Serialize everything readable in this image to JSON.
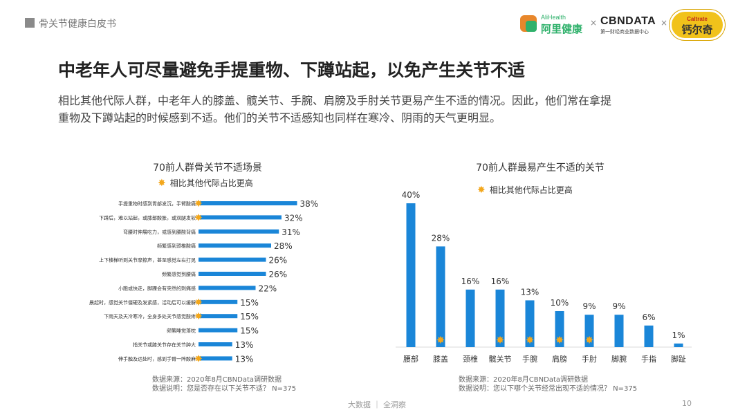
{
  "header": {
    "report_title": "骨关节健康白皮书"
  },
  "logos": {
    "alihealth_en": "AliHealth",
    "alihealth_cn": "阿里健康",
    "times": "×",
    "cbndata": "CBNDATA",
    "cbndata_sub": "第一财经商业数据中心",
    "caltrate_en": "Caltrate",
    "caltrate_cn": "钙尔奇"
  },
  "title": "中老年人可尽量避免手提重物、下蹲站起，以免产生关节不适",
  "intro_line1": "相比其他代际人群，中老年人的膝盖、髋关节、手腕、肩膀及手肘关节更易产生不适的情况。因此，他们常在拿提",
  "intro_line2": "重物及下蹲站起的时候感到不适。他们的关节不适感知也同样在寒冷、阴雨的天气更明显。",
  "left_chart": {
    "legend": "相比其他代际占比更高",
    "source": "数据来源：2020年8月CBNData调研数据",
    "note": "数据说明：您是否存在以下关节不适？ N=375"
  },
  "right_chart": {
    "legend": "相比其他代际占比更高",
    "source": "数据来源：2020年8月CBNData调研数据",
    "note": "数据说明：您以下哪个关节经常出现不适的情况？ N=375"
  },
  "footer": {
    "text": "大数据 ｜ 全洞察",
    "page": "10"
  },
  "chart_data": [
    {
      "type": "bar",
      "orientation": "horizontal",
      "title": "70前人群骨关节不适场景",
      "categories": [
        "手提重物时感到胃部发沉，手臂酸痛",
        "下蹲后，难以站起，或膝部酸胀，或双腿发软",
        "弯腰时伸展吃力，或感到腰酸背痛",
        "频繁感到颈椎酸痛",
        "上下楼梯听到关节摩擦声，甚至感觉左右打晃",
        "频繁感觉到腰痛",
        "小跑或快走，脚踝会有突然的刺痛感",
        "晨起时，感觉关节僵硬及发紧感，活动后可以缓解",
        "下雨天及天冷寒冷，全身多处关节感觉酸疼",
        "频繁睡觉落枕",
        "指关节或膝关节存在关节肿大",
        "伸手触及远处时，感到手臂一阵酸麻"
      ],
      "values": [
        38,
        32,
        31,
        28,
        26,
        26,
        22,
        15,
        15,
        15,
        13,
        13
      ],
      "value_labels": [
        "38%",
        "32%",
        "31%",
        "28%",
        "26%",
        "26%",
        "22%",
        "15%",
        "15%",
        "15%",
        "13%",
        "13%"
      ],
      "highlighted": [
        true,
        true,
        false,
        false,
        false,
        false,
        false,
        true,
        true,
        false,
        false,
        true
      ],
      "color": "#1a86d8",
      "star_color": "#f3a71c",
      "xlim": [
        0,
        40
      ]
    },
    {
      "type": "bar",
      "orientation": "vertical",
      "title": "70前人群最易产生不适的关节",
      "categories": [
        "腰部",
        "膝盖",
        "颈椎",
        "髋关节",
        "手腕",
        "肩膀",
        "手肘",
        "脚腕",
        "手指",
        "脚趾"
      ],
      "values": [
        40,
        28,
        16,
        16,
        13,
        10,
        9,
        9,
        6,
        1
      ],
      "value_labels": [
        "40%",
        "28%",
        "16%",
        "16%",
        "13%",
        "10%",
        "9%",
        "9%",
        "6%",
        "1%"
      ],
      "highlighted": [
        false,
        true,
        false,
        true,
        true,
        true,
        true,
        false,
        false,
        false
      ],
      "color": "#1a86d8",
      "star_color": "#f3a71c",
      "ylim": [
        0,
        40
      ]
    }
  ]
}
